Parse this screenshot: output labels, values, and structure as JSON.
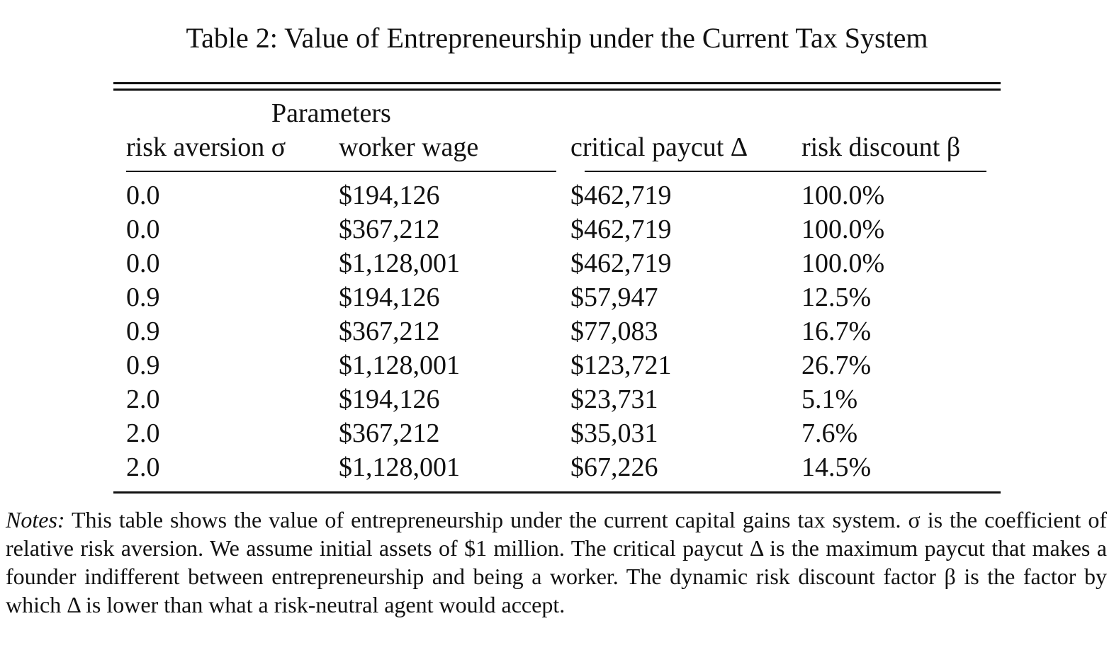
{
  "header": {
    "title": "Table 2: Value of Entrepreneurship under the Current Tax System"
  },
  "table": {
    "group_header": "Parameters",
    "columns": [
      "risk aversion σ",
      "worker wage",
      "critical paycut Δ",
      "risk discount β"
    ],
    "rows": [
      [
        "0.0",
        "$194,126",
        "$462,719",
        "100.0%"
      ],
      [
        "0.0",
        "$367,212",
        "$462,719",
        "100.0%"
      ],
      [
        "0.0",
        "$1,128,001",
        "$462,719",
        "100.0%"
      ],
      [
        "0.9",
        "$194,126",
        "$57,947",
        "12.5%"
      ],
      [
        "0.9",
        "$367,212",
        "$77,083",
        "16.7%"
      ],
      [
        "0.9",
        "$1,128,001",
        "$123,721",
        "26.7%"
      ],
      [
        "2.0",
        "$194,126",
        "$23,731",
        "5.1%"
      ],
      [
        "2.0",
        "$367,212",
        "$35,031",
        "7.6%"
      ],
      [
        "2.0",
        "$1,128,001",
        "$67,226",
        "14.5%"
      ]
    ]
  },
  "notes": {
    "label": "Notes:",
    "text": "This table shows the value of entrepreneurship under the current capital gains tax system. σ is the coefficient of relative risk aversion. We assume initial assets of $1 million. The critical paycut Δ is the maximum paycut that makes a founder indifferent between entrepreneurship and being a worker. The dynamic risk discount factor β is the factor by which Δ is lower than what a risk-neutral agent would accept."
  }
}
